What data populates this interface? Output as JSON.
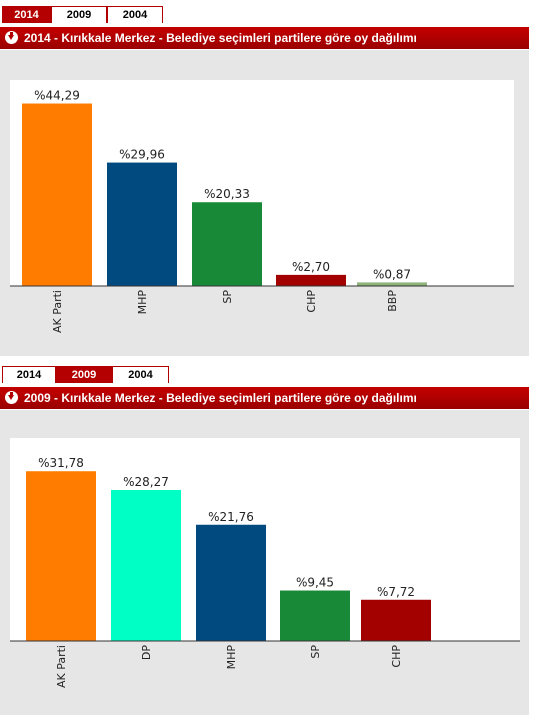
{
  "charts": [
    {
      "tabs": [
        {
          "label": "2014",
          "active": true
        },
        {
          "label": "2009",
          "active": false
        },
        {
          "label": "2004",
          "active": false
        }
      ],
      "title": "2014 - Kırıkkale Merkez - Belediye seçimleri partilere göre oy dağılımı"
    },
    {
      "tabs": [
        {
          "label": "2014",
          "active": false
        },
        {
          "label": "2009",
          "active": true
        },
        {
          "label": "2004",
          "active": false
        }
      ],
      "title": "2009 - Kırıkkale Merkez - Belediye seçimleri partilere göre oy dağılımı"
    }
  ],
  "chart_data": [
    {
      "type": "bar",
      "title": "2014 - Kırıkkale Merkez - Belediye seçimleri partilere göre oy dağılımı",
      "categories": [
        "AK Parti",
        "MHP",
        "SP",
        "CHP",
        "BBP"
      ],
      "values": [
        44.29,
        29.96,
        20.33,
        2.7,
        0.87
      ],
      "value_labels": [
        "%44,29",
        "%29,96",
        "%20,33",
        "%2,70",
        "%0,87"
      ],
      "colors": [
        "#ff7c00",
        "#004a7f",
        "#188a37",
        "#a30000",
        "#8db27a"
      ],
      "ylim": [
        0,
        50
      ],
      "grid": false,
      "xlabel": "",
      "ylabel": ""
    },
    {
      "type": "bar",
      "title": "2009 - Kırıkkale Merkez - Belediye seçimleri partilere göre oy dağılımı",
      "categories": [
        "AK Parti",
        "DP",
        "MHP",
        "SP",
        "CHP"
      ],
      "values": [
        31.78,
        28.27,
        21.76,
        9.45,
        7.72
      ],
      "value_labels": [
        "%31,78",
        "%28,27",
        "%21,76",
        "%9,45",
        "%7,72"
      ],
      "colors": [
        "#ff7c00",
        "#00ffc4",
        "#004a7f",
        "#188a37",
        "#a30000"
      ],
      "ylim": [
        0,
        38
      ],
      "grid": false,
      "xlabel": "",
      "ylabel": ""
    }
  ]
}
